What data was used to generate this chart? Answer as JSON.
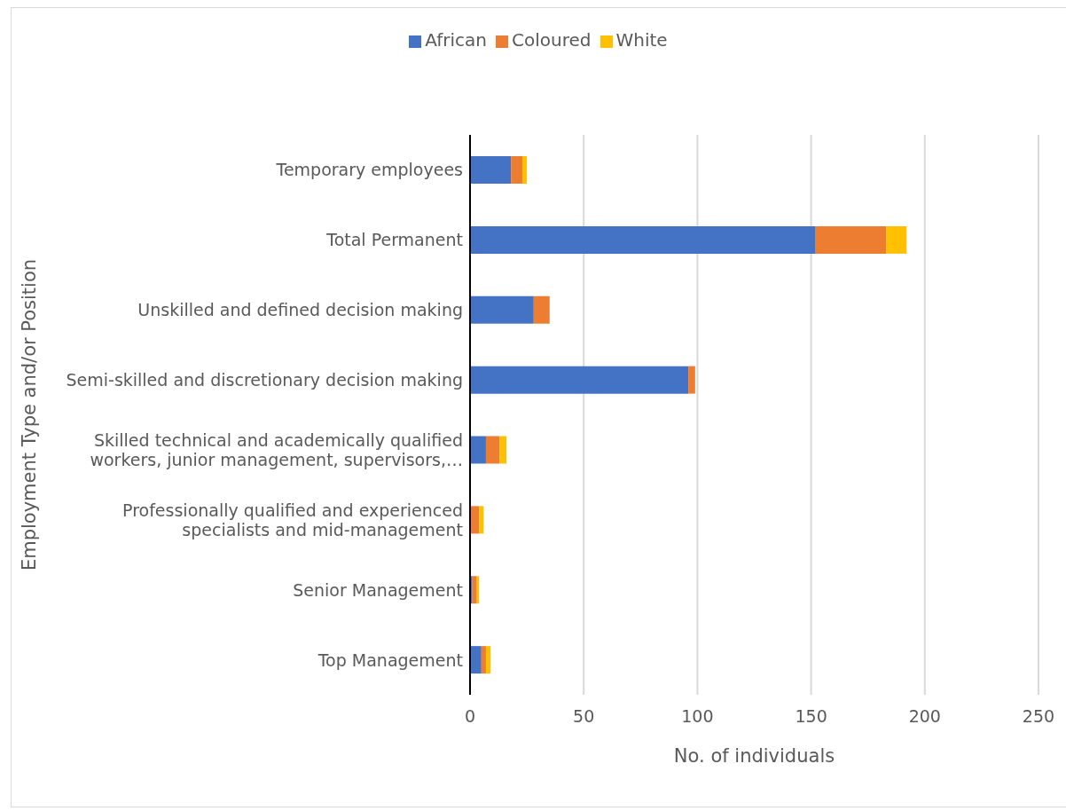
{
  "chart_data": {
    "type": "bar",
    "orientation": "horizontal",
    "stacked": true,
    "categories": [
      "Temporary employees",
      "Total Permanent",
      "Unskilled and defined decision making",
      "Semi-skilled and discretionary decision making",
      "Skilled technical and academically qualified workers, junior management, supervisors,…",
      "Professionally qualified and experienced specialists and mid-management",
      "Senior Management",
      "Top Management"
    ],
    "series": [
      {
        "name": "African",
        "color": "#4472c4",
        "values": [
          18,
          152,
          28,
          96,
          7,
          0,
          1,
          5
        ]
      },
      {
        "name": "Coloured",
        "color": "#ed7d31",
        "values": [
          5,
          31,
          7,
          3,
          6,
          4,
          2,
          2
        ]
      },
      {
        "name": "White",
        "color": "#ffc000",
        "values": [
          2,
          9,
          0,
          0,
          3,
          2,
          1,
          2
        ]
      }
    ],
    "xlabel": "No. of individuals",
    "ylabel": "Employment Type and/or Position",
    "xlim": [
      0,
      250
    ],
    "xticks": [
      0,
      50,
      100,
      150,
      200,
      250
    ],
    "grid": "x",
    "legend": "top"
  }
}
